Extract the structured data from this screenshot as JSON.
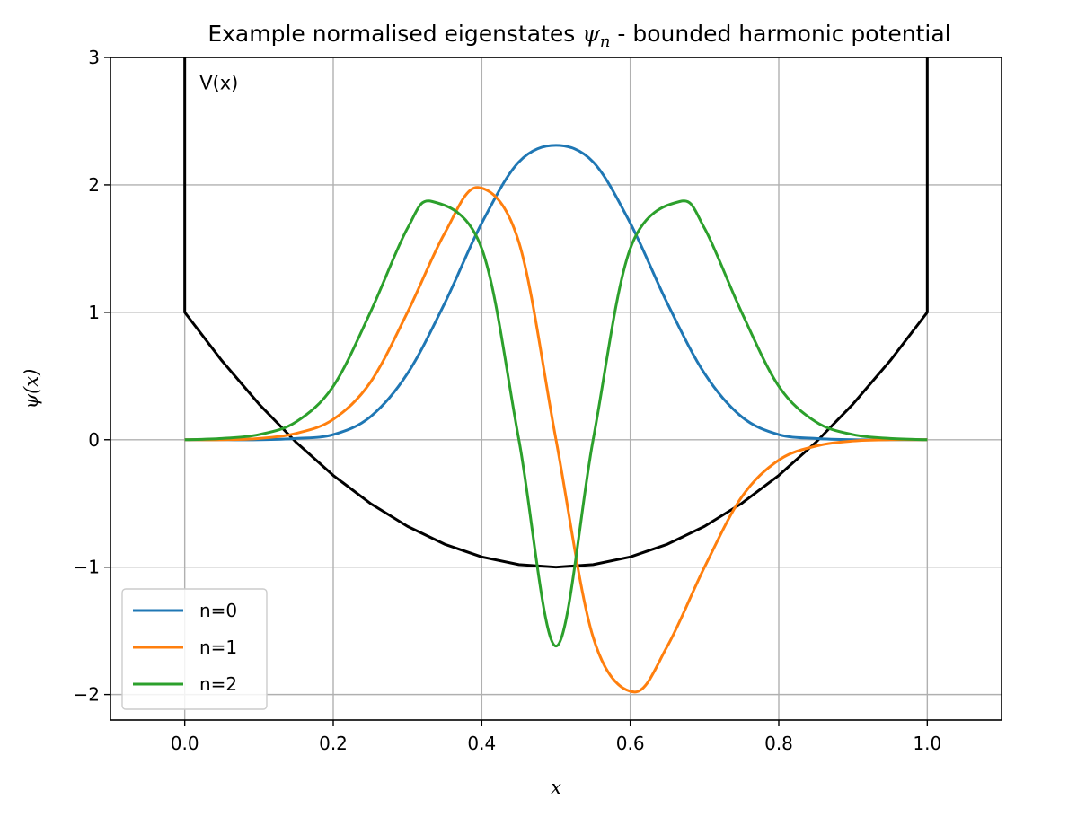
{
  "chart_data": {
    "type": "line",
    "title": "Example normalised eigenstates ψn - bounded harmonic potential",
    "title_parts": {
      "lead": "Example normalised eigenstates ",
      "psi": "ψ",
      "sub": "n",
      "rest": " - bounded harmonic potential"
    },
    "xlabel": "x",
    "ylabel": "ψ(x)",
    "xlim": [
      -0.1,
      1.1
    ],
    "ylim": [
      -2.2,
      3.0
    ],
    "xticks": [
      0.0,
      0.2,
      0.4,
      0.6,
      0.8,
      1.0
    ],
    "xtick_labels": [
      "0.0",
      "0.2",
      "0.4",
      "0.6",
      "0.8",
      "1.0"
    ],
    "yticks": [
      -2,
      -1,
      0,
      1,
      2,
      3
    ],
    "ytick_labels": [
      "−2",
      "−1",
      "0",
      "1",
      "2",
      "3"
    ],
    "grid": true,
    "legend_position": "lower-left",
    "annotation": {
      "text": "V(x)",
      "x": 0.02,
      "y": 2.8
    },
    "potential": {
      "color": "#000000",
      "x": [
        0.0,
        0.0,
        0.05,
        0.1,
        0.15,
        0.2,
        0.25,
        0.3,
        0.35,
        0.4,
        0.45,
        0.5,
        0.55,
        0.6,
        0.65,
        0.7,
        0.75,
        0.8,
        0.85,
        0.9,
        0.95,
        1.0,
        1.0
      ],
      "y": [
        3.1,
        1.0,
        0.62,
        0.28,
        -0.02,
        -0.28,
        -0.5,
        -0.68,
        -0.82,
        -0.92,
        -0.98,
        -1.0,
        -0.98,
        -0.92,
        -0.82,
        -0.68,
        -0.5,
        -0.28,
        -0.02,
        0.28,
        0.62,
        1.0,
        3.1
      ]
    },
    "series": [
      {
        "name": "n=0",
        "color": "#1f77b4",
        "x": [
          0.0,
          0.05,
          0.1,
          0.15,
          0.2,
          0.25,
          0.3,
          0.35,
          0.4,
          0.45,
          0.5,
          0.55,
          0.6,
          0.65,
          0.7,
          0.75,
          0.8,
          0.85,
          0.9,
          0.95,
          1.0
        ],
        "y": [
          0.0,
          0.0,
          0.0,
          0.01,
          0.04,
          0.18,
          0.52,
          1.07,
          1.7,
          2.18,
          2.31,
          2.18,
          1.7,
          1.07,
          0.52,
          0.18,
          0.04,
          0.01,
          0.0,
          0.0,
          0.0
        ]
      },
      {
        "name": "n=1",
        "color": "#ff7f0e",
        "x": [
          0.0,
          0.05,
          0.1,
          0.15,
          0.2,
          0.25,
          0.3,
          0.35,
          0.395,
          0.45,
          0.5,
          0.55,
          0.605,
          0.65,
          0.7,
          0.75,
          0.8,
          0.85,
          0.9,
          0.95,
          1.0
        ],
        "y": [
          0.0,
          0.0,
          0.01,
          0.05,
          0.16,
          0.45,
          1.0,
          1.62,
          1.98,
          1.55,
          0.0,
          -1.55,
          -1.98,
          -1.62,
          -1.0,
          -0.45,
          -0.16,
          -0.05,
          -0.01,
          0.0,
          0.0
        ]
      },
      {
        "name": "n=2",
        "color": "#2ca02c",
        "x": [
          0.0,
          0.05,
          0.1,
          0.15,
          0.2,
          0.25,
          0.3,
          0.333,
          0.4,
          0.45,
          0.5,
          0.55,
          0.6,
          0.667,
          0.7,
          0.75,
          0.8,
          0.85,
          0.9,
          0.95,
          1.0
        ],
        "y": [
          0.0,
          0.01,
          0.04,
          0.14,
          0.42,
          1.0,
          1.66,
          1.87,
          1.5,
          0.0,
          -1.62,
          0.0,
          1.5,
          1.87,
          1.66,
          1.0,
          0.42,
          0.14,
          0.04,
          0.01,
          0.0
        ]
      }
    ]
  }
}
